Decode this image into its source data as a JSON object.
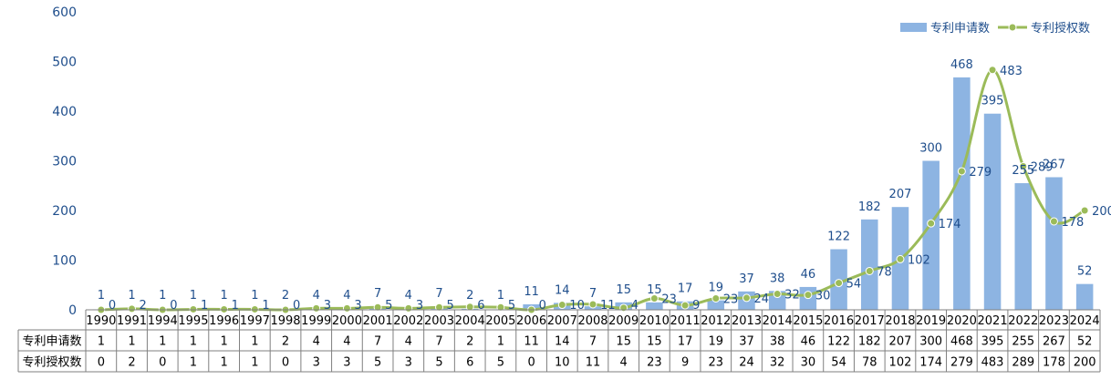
{
  "chart_data": {
    "type": "bar",
    "title": "",
    "xlabel": "",
    "ylabel": "",
    "ylim": [
      0,
      600
    ],
    "yticks": [
      0,
      100,
      200,
      300,
      400,
      500,
      600
    ],
    "grid": false,
    "legend_position": "top-right",
    "categories": [
      "1990",
      "1991",
      "1994",
      "1995",
      "1996",
      "1997",
      "1998",
      "1999",
      "2000",
      "2001",
      "2002",
      "2003",
      "2004",
      "2005",
      "2006",
      "2007",
      "2008",
      "2009",
      "2010",
      "2011",
      "2012",
      "2013",
      "2014",
      "2015",
      "2016",
      "2017",
      "2018",
      "2019",
      "2020",
      "2021",
      "2022",
      "2023",
      "2024"
    ],
    "series": [
      {
        "name": "专利申请数",
        "type": "bar",
        "color": "#8db4e2",
        "values": [
          1,
          1,
          1,
          1,
          1,
          1,
          2,
          4,
          4,
          7,
          4,
          7,
          2,
          1,
          11,
          14,
          7,
          15,
          15,
          17,
          19,
          37,
          38,
          46,
          122,
          182,
          207,
          300,
          468,
          395,
          255,
          267,
          52
        ]
      },
      {
        "name": "专利授权数",
        "type": "line",
        "color": "#9bbb59",
        "values": [
          0,
          2,
          0,
          1,
          1,
          1,
          0,
          3,
          3,
          5,
          3,
          5,
          6,
          5,
          0,
          10,
          11,
          4,
          23,
          9,
          23,
          24,
          32,
          30,
          54,
          78,
          102,
          174,
          279,
          483,
          289,
          178,
          200
        ]
      }
    ]
  }
}
